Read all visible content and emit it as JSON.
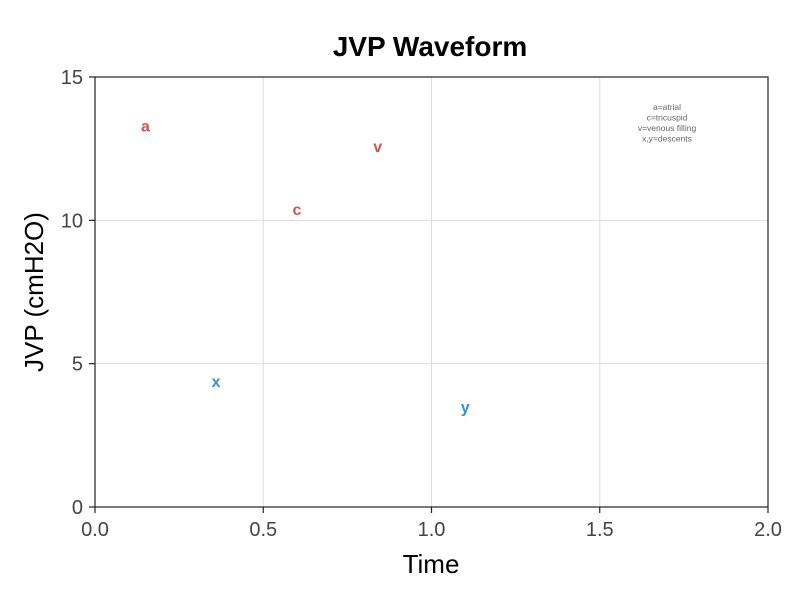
{
  "chart_data": {
    "type": "scatter",
    "title": "JVP Waveform",
    "xlabel": "Time",
    "ylabel": "JVP (cmH2O)",
    "xlim": [
      0,
      2
    ],
    "ylim": [
      0,
      15
    ],
    "x_ticks": [
      0,
      0.5,
      1,
      1.5,
      2
    ],
    "x_tick_labels": [
      "0.0",
      "0.5",
      "1.0",
      "1.5",
      "2.0"
    ],
    "y_ticks": [
      0,
      5,
      10,
      15
    ],
    "y_tick_labels": [
      "0",
      "5",
      "10",
      "15"
    ],
    "grid": true,
    "points": [
      {
        "label": "a",
        "x": 0.15,
        "y": 13.3,
        "color": "#d9534f"
      },
      {
        "label": "x",
        "x": 0.36,
        "y": 4.4,
        "color": "#3a8fd0"
      },
      {
        "label": "c",
        "x": 0.6,
        "y": 10.4,
        "color": "#d9534f"
      },
      {
        "label": "v",
        "x": 0.84,
        "y": 12.6,
        "color": "#d9534f"
      },
      {
        "label": "y",
        "x": 1.1,
        "y": 3.5,
        "color": "#3a8fd0"
      }
    ],
    "legend": {
      "placement": "top-right",
      "lines": [
        "a=atrial",
        "c=tricuspid",
        "v=venous filling",
        "x,y=descents"
      ]
    }
  }
}
